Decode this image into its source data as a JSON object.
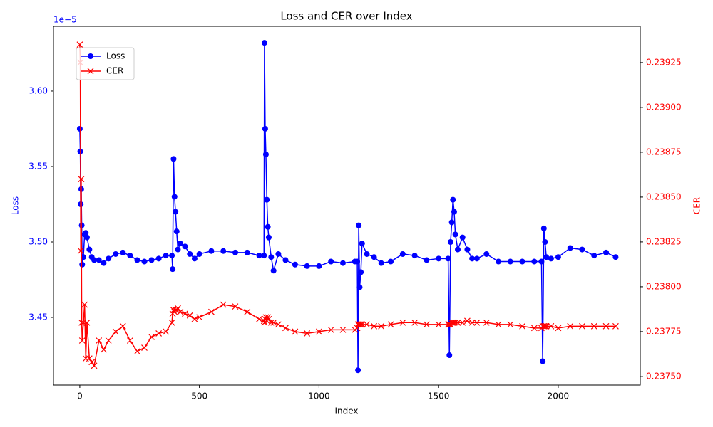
{
  "chart_data": {
    "type": "line",
    "title": "Loss and CER over Index",
    "x_label": "Index",
    "y_label": "Loss",
    "y2_label": "CER",
    "y_offset_label": "1e−5",
    "x": [
      0,
      2,
      4,
      6,
      8,
      10,
      15,
      20,
      25,
      30,
      40,
      50,
      60,
      80,
      100,
      120,
      150,
      180,
      210,
      240,
      270,
      300,
      330,
      360,
      385,
      388,
      392,
      396,
      400,
      405,
      410,
      420,
      440,
      460,
      480,
      500,
      550,
      600,
      650,
      700,
      750,
      770,
      772,
      775,
      778,
      782,
      786,
      790,
      800,
      810,
      830,
      860,
      900,
      950,
      1000,
      1050,
      1100,
      1150,
      1160,
      1163,
      1166,
      1170,
      1175,
      1180,
      1200,
      1230,
      1260,
      1300,
      1350,
      1400,
      1450,
      1500,
      1540,
      1545,
      1550,
      1555,
      1560,
      1565,
      1570,
      1580,
      1600,
      1620,
      1640,
      1660,
      1700,
      1750,
      1800,
      1850,
      1900,
      1930,
      1935,
      1940,
      1945,
      1950,
      1970,
      2000,
      2050,
      2100,
      2150,
      2200,
      2240
    ],
    "series": [
      {
        "name": "Loss",
        "color": "#0000ff",
        "marker": "circle",
        "axis": "y",
        "values": [
          3.575,
          3.56,
          3.525,
          3.535,
          3.511,
          3.485,
          3.49,
          3.505,
          3.506,
          3.503,
          3.495,
          3.49,
          3.488,
          3.488,
          3.486,
          3.489,
          3.492,
          3.493,
          3.491,
          3.488,
          3.487,
          3.488,
          3.489,
          3.491,
          3.491,
          3.482,
          3.555,
          3.53,
          3.52,
          3.507,
          3.495,
          3.499,
          3.497,
          3.492,
          3.489,
          3.492,
          3.494,
          3.494,
          3.493,
          3.493,
          3.491,
          3.491,
          3.632,
          3.575,
          3.558,
          3.528,
          3.51,
          3.503,
          3.49,
          3.481,
          3.492,
          3.488,
          3.485,
          3.484,
          3.484,
          3.487,
          3.486,
          3.487,
          3.487,
          3.415,
          3.511,
          3.47,
          3.48,
          3.499,
          3.492,
          3.49,
          3.486,
          3.487,
          3.492,
          3.491,
          3.488,
          3.489,
          3.489,
          3.425,
          3.5,
          3.513,
          3.528,
          3.52,
          3.505,
          3.495,
          3.503,
          3.495,
          3.489,
          3.489,
          3.492,
          3.487,
          3.487,
          3.487,
          3.487,
          3.487,
          3.421,
          3.509,
          3.5,
          3.49,
          3.489,
          3.49,
          3.496,
          3.495,
          3.491,
          3.493,
          3.49
        ]
      },
      {
        "name": "CER",
        "color": "#ff0000",
        "marker": "x",
        "axis": "y2",
        "values": [
          0.23935,
          0.23925,
          0.2382,
          0.2386,
          0.2378,
          0.2377,
          0.2378,
          0.2379,
          0.2376,
          0.2378,
          0.2376,
          0.23758,
          0.23756,
          0.2377,
          0.23765,
          0.2377,
          0.23775,
          0.23778,
          0.2377,
          0.23764,
          0.23766,
          0.23772,
          0.23774,
          0.23775,
          0.2378,
          0.23785,
          0.23787,
          0.23786,
          0.23787,
          0.23787,
          0.23788,
          0.23786,
          0.23785,
          0.23784,
          0.23782,
          0.23783,
          0.23786,
          0.2379,
          0.23789,
          0.23786,
          0.23782,
          0.23781,
          0.2378,
          0.23782,
          0.23783,
          0.23781,
          0.23783,
          0.23782,
          0.2378,
          0.2378,
          0.23779,
          0.23777,
          0.23775,
          0.23774,
          0.23775,
          0.23776,
          0.23776,
          0.23776,
          0.23777,
          0.23779,
          0.23779,
          0.23779,
          0.23779,
          0.23779,
          0.23779,
          0.23778,
          0.23778,
          0.23779,
          0.2378,
          0.2378,
          0.23779,
          0.23779,
          0.23779,
          0.23779,
          0.23779,
          0.2378,
          0.2378,
          0.2378,
          0.2378,
          0.2378,
          0.2378,
          0.23781,
          0.2378,
          0.2378,
          0.2378,
          0.23779,
          0.23779,
          0.23778,
          0.23777,
          0.23777,
          0.23778,
          0.23778,
          0.23778,
          0.23778,
          0.23778,
          0.23777,
          0.23778,
          0.23778,
          0.23778,
          0.23778,
          0.23778
        ]
      }
    ],
    "xlim": [
      -110,
      2343
    ],
    "xticks": [
      0,
      500,
      1000,
      1500,
      2000
    ],
    "ylim": [
      3.4052,
      3.6429
    ],
    "yticks": [
      3.45,
      {
        "value": 3.5,
        "label": "3.50"
      },
      3.55,
      {
        "value": 3.6,
        "label": "3.60"
      }
    ],
    "y2lim": [
      0.237452,
      0.239452
    ],
    "y2ticks": [
      {
        "value": 0.2375,
        "label": "0.23750"
      },
      0.23775,
      {
        "value": 0.238,
        "label": "0.23800"
      },
      0.23825,
      {
        "value": 0.2385,
        "label": "0.23850"
      },
      0.23875,
      {
        "value": 0.239,
        "label": "0.23900"
      },
      0.23925
    ],
    "legend": "upper left"
  }
}
